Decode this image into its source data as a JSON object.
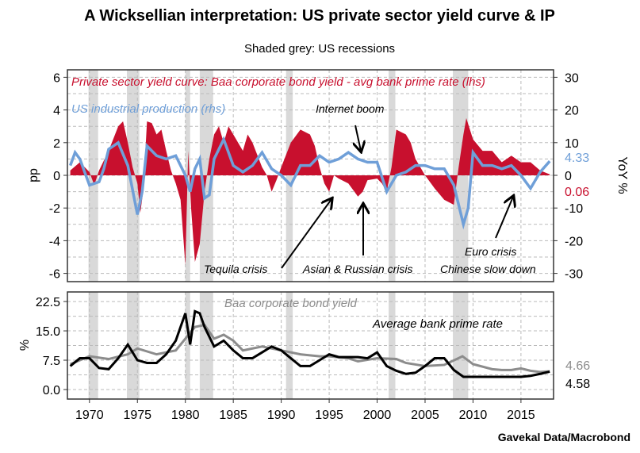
{
  "title": "A Wicksellian interpretation: US private sector yield curve & IP",
  "subtitle": "Shaded grey: US recessions",
  "source": "Gavekal Data/Macrobond",
  "colors": {
    "spread": "#c8102e",
    "ip": "#6f9fd8",
    "baa": "#8c8c8c",
    "prime": "#000000",
    "recession": "#d9d9d9"
  },
  "chart_data": [
    {
      "type": "area+line",
      "panel": "top",
      "ylabel_left": "pp",
      "ylabel_right": "YoY %",
      "ylim_left": [
        -6.5,
        6.5
      ],
      "ylim_right": [
        -32.5,
        32.5
      ],
      "yticks_left": [
        "6",
        "4",
        "2",
        "0",
        "-2",
        "-4",
        "-6"
      ],
      "yticks_right": [
        "30",
        "20",
        "10",
        "0",
        "-10",
        "-20",
        "-30"
      ],
      "xlim": [
        1967.7,
        2018.4
      ],
      "grid": true,
      "recessions": [
        [
          1969.9,
          1970.9
        ],
        [
          1973.9,
          1975.2
        ],
        [
          1980.0,
          1980.5
        ],
        [
          1981.5,
          1982.9
        ],
        [
          1990.5,
          1991.2
        ],
        [
          2001.2,
          2001.9
        ],
        [
          2007.9,
          2009.5
        ]
      ],
      "series": [
        {
          "name": "Private sector yield curve: Baa corporate bond yield - avg bank prime rate (lhs)",
          "axis": "left",
          "style": "area",
          "x": [
            1968,
            1969,
            1970,
            1970.5,
            1971,
            1972,
            1973,
            1973.5,
            1974,
            1974.5,
            1975,
            1975.3,
            1975.6,
            1976,
            1976.5,
            1977,
            1977.5,
            1978,
            1978.5,
            1979,
            1979.5,
            1980,
            1980.3,
            1980.6,
            1981,
            1981.5,
            1982,
            1982.5,
            1983,
            1983.5,
            1984,
            1984.5,
            1985,
            1986,
            1986.5,
            1987,
            1988,
            1988.5,
            1989,
            1989.5,
            1990,
            1991,
            1992,
            1993,
            1993.5,
            1994,
            1994.5,
            1995,
            1995.5,
            1996,
            1997,
            1998,
            1998.5,
            1999,
            2000,
            2000.5,
            2001,
            2001.5,
            2002,
            2003,
            2003.5,
            2004,
            2005,
            2006,
            2007,
            2008,
            2008.5,
            2009,
            2009.3,
            2010,
            2011,
            2012,
            2013,
            2014,
            2015,
            2016,
            2017,
            2018
          ],
          "y": [
            0.3,
            0.8,
            0.2,
            -0.6,
            0.3,
            1.5,
            3.0,
            3.3,
            2.0,
            0.5,
            -0.5,
            -2.3,
            -1.0,
            3.3,
            3.2,
            2.5,
            2.8,
            1.5,
            0.3,
            -0.5,
            -1.5,
            -5.5,
            1.5,
            -2.0,
            -5.3,
            -4.2,
            -1.0,
            1.0,
            2.5,
            3.0,
            2.0,
            3.0,
            2.5,
            1.5,
            2.5,
            2.0,
            0.5,
            0,
            -1.0,
            -0.3,
            0.5,
            2.0,
            2.8,
            2.5,
            1.8,
            0.5,
            -0.5,
            -1.0,
            0,
            -0.2,
            -0.5,
            -1.3,
            -1.0,
            -0.3,
            -0.2,
            -0.5,
            -1.0,
            0.5,
            2.8,
            2.5,
            2.0,
            1.0,
            0,
            -0.8,
            -1.5,
            -1.8,
            0.5,
            2.5,
            3.5,
            2.2,
            1.5,
            1.5,
            0.8,
            1.2,
            0.8,
            0.8,
            0.3,
            0.06
          ],
          "last_label": "0.06"
        },
        {
          "name": "US industrial production (rhs)",
          "axis": "right",
          "style": "line",
          "x": [
            1968,
            1968.5,
            1969,
            1970,
            1971,
            1971.5,
            1972,
            1973,
            1974,
            1975,
            1975.5,
            1976,
            1977,
            1978,
            1979,
            1980,
            1980.5,
            1981,
            1981.5,
            1982,
            1982.5,
            1983,
            1984,
            1985,
            1986,
            1987,
            1988,
            1989,
            1990,
            1991,
            1992,
            1993,
            1994,
            1995,
            1996,
            1997,
            1998,
            1999,
            2000,
            2001,
            2002,
            2003,
            2004,
            2005,
            2006,
            2007,
            2008,
            2009,
            2009.5,
            2010,
            2011,
            2012,
            2013,
            2014,
            2015,
            2016,
            2017,
            2018
          ],
          "y": [
            3,
            7,
            5,
            -3,
            -2,
            2,
            8,
            10,
            3,
            -12,
            -5,
            9,
            6,
            5,
            6,
            0,
            -5,
            2,
            5,
            -7,
            -6,
            5,
            11,
            3,
            1,
            3,
            7,
            2,
            0,
            -3,
            3,
            3,
            6,
            4,
            5,
            7,
            5,
            4,
            4,
            -5,
            0,
            1,
            3,
            3,
            2,
            2,
            -3,
            -15,
            -10,
            7,
            3,
            3,
            2,
            3,
            0,
            -4,
            1,
            4.33
          ],
          "last_label": "4.33"
        }
      ],
      "annotations": [
        "Internet boom",
        "Tequila crisis",
        "Asian & Russian crisis",
        "Euro crisis",
        "Chinese slow down"
      ]
    },
    {
      "type": "line",
      "panel": "bottom",
      "ylabel": "%",
      "ylim": [
        -1,
        24.5
      ],
      "yticks": [
        "22.5",
        "15.0",
        "7.5",
        "0.0"
      ],
      "xticks": [
        "1970",
        "1975",
        "1980",
        "1985",
        "1990",
        "1995",
        "2000",
        "2005",
        "2010",
        "2015"
      ],
      "grid": true,
      "series": [
        {
          "name": "Baa corporate bond yield",
          "x": [
            1968,
            1970,
            1972,
            1974,
            1975,
            1977,
            1979,
            1980,
            1981,
            1982,
            1983,
            1984,
            1985,
            1986,
            1987,
            1988,
            1990,
            1992,
            1994,
            1995,
            1997,
            1998,
            2000,
            2002,
            2003,
            2005,
            2007,
            2008.9,
            2010,
            2012,
            2013,
            2014,
            2015,
            2016,
            2017,
            2018
          ],
          "y": [
            6.5,
            8.5,
            7.8,
            9,
            10.5,
            9,
            10,
            13,
            16,
            16.5,
            13,
            14,
            12.5,
            10,
            10.5,
            11,
            10,
            9,
            8.5,
            8.5,
            8,
            7.2,
            8,
            7.8,
            6.8,
            6,
            6.3,
            8.5,
            6.5,
            5.2,
            5,
            5,
            5.4,
            4.8,
            4.5,
            4.66
          ],
          "last_label": "4.66"
        },
        {
          "name": "Average bank prime rate",
          "x": [
            1968,
            1969,
            1970,
            1971,
            1972,
            1973,
            1974,
            1975,
            1976,
            1977,
            1978,
            1979,
            1980,
            1980.5,
            1981,
            1981.5,
            1982,
            1983,
            1984,
            1985,
            1986,
            1987,
            1988,
            1989,
            1990,
            1991,
            1992,
            1993,
            1994,
            1995,
            1996,
            1998,
            1999,
            2000,
            2001,
            2002,
            2003,
            2004,
            2005,
            2006,
            2007,
            2008,
            2009,
            2015,
            2016,
            2017,
            2018
          ],
          "y": [
            6,
            8,
            8,
            5.5,
            5.2,
            8,
            11.5,
            7.5,
            6.8,
            6.8,
            9,
            12.5,
            19.5,
            11.5,
            20,
            19.5,
            16,
            11,
            12.5,
            10,
            8,
            8,
            9.5,
            11,
            10,
            8,
            6,
            6,
            7.5,
            9,
            8.3,
            8.3,
            8,
            9.5,
            6,
            4.8,
            4,
            4.3,
            6,
            8,
            8,
            5,
            3.25,
            3.25,
            3.5,
            4,
            4.58
          ],
          "last_label": "4.58"
        }
      ]
    }
  ]
}
